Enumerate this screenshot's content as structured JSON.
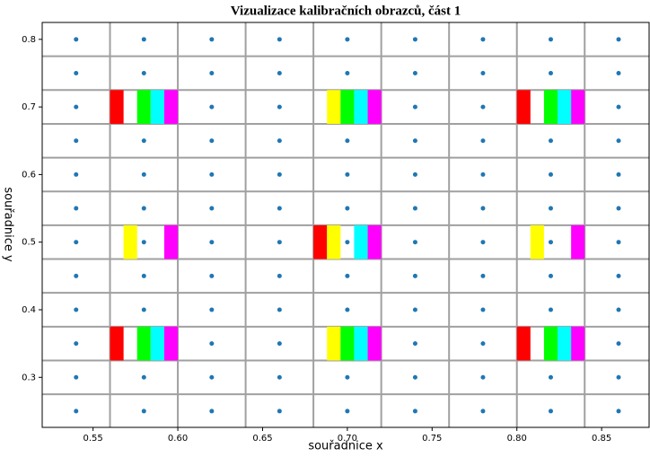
{
  "chart_data": {
    "type": "scatter",
    "title": "Vizualizace kalibračních obrazců, část 1",
    "xlabel": "souřadnice x",
    "ylabel": "souřadnice y",
    "xlim": [
      0.52,
      0.878
    ],
    "ylim": [
      0.226,
      0.825
    ],
    "xticks": [
      0.55,
      {
        "value": 0.6,
        "label": "0.60"
      },
      0.65,
      {
        "value": 0.7,
        "label": "0.70"
      },
      0.75,
      {
        "value": 0.8,
        "label": "0.80"
      },
      0.85
    ],
    "yticks": [
      0.3,
      0.4,
      0.5,
      0.6,
      0.7,
      0.8
    ],
    "xgrid": [
      0.56,
      0.6,
      0.64,
      0.68,
      0.72,
      0.76,
      0.8,
      0.84
    ],
    "ygrid": [
      0.275,
      0.325,
      0.375,
      0.425,
      0.475,
      0.525,
      0.575,
      0.625,
      0.675,
      0.725,
      0.775
    ],
    "grid_color": "#a0a0a0",
    "point_color": "#1f77b4",
    "x": [
      0.54,
      0.58,
      0.62,
      0.66,
      0.7,
      0.74,
      0.78,
      0.82,
      0.86,
      0.54,
      0.58,
      0.62,
      0.66,
      0.7,
      0.74,
      0.78,
      0.82,
      0.86,
      0.54,
      0.58,
      0.62,
      0.66,
      0.7,
      0.74,
      0.78,
      0.82,
      0.86,
      0.54,
      0.58,
      0.62,
      0.66,
      0.7,
      0.74,
      0.78,
      0.82,
      0.86,
      0.54,
      0.58,
      0.62,
      0.66,
      0.7,
      0.74,
      0.78,
      0.82,
      0.86,
      0.54,
      0.58,
      0.62,
      0.66,
      0.7,
      0.74,
      0.78,
      0.82,
      0.86,
      0.54,
      0.58,
      0.62,
      0.66,
      0.7,
      0.74,
      0.78,
      0.82,
      0.86,
      0.54,
      0.58,
      0.62,
      0.66,
      0.7,
      0.74,
      0.78,
      0.82,
      0.86,
      0.54,
      0.58,
      0.62,
      0.66,
      0.7,
      0.74,
      0.78,
      0.82,
      0.86,
      0.54,
      0.58,
      0.62,
      0.66,
      0.7,
      0.74,
      0.78,
      0.82,
      0.86,
      0.54,
      0.58,
      0.62,
      0.66,
      0.7,
      0.74,
      0.78,
      0.82,
      0.86,
      0.54,
      0.58,
      0.62,
      0.66,
      0.7,
      0.74,
      0.78,
      0.82,
      0.86
    ],
    "y": [
      0.8,
      0.8,
      0.8,
      0.8,
      0.8,
      0.8,
      0.8,
      0.8,
      0.8,
      0.75,
      0.75,
      0.75,
      0.75,
      0.75,
      0.75,
      0.75,
      0.75,
      0.75,
      0.7,
      0.7,
      0.7,
      0.7,
      0.7,
      0.7,
      0.7,
      0.7,
      0.7,
      0.65,
      0.65,
      0.65,
      0.65,
      0.65,
      0.65,
      0.65,
      0.65,
      0.65,
      0.6,
      0.6,
      0.6,
      0.6,
      0.6,
      0.6,
      0.6,
      0.6,
      0.6,
      0.55,
      0.55,
      0.55,
      0.55,
      0.55,
      0.55,
      0.55,
      0.55,
      0.55,
      0.5,
      0.5,
      0.5,
      0.5,
      0.5,
      0.5,
      0.5,
      0.5,
      0.5,
      0.45,
      0.45,
      0.45,
      0.45,
      0.45,
      0.45,
      0.45,
      0.45,
      0.45,
      0.4,
      0.4,
      0.4,
      0.4,
      0.4,
      0.4,
      0.4,
      0.4,
      0.4,
      0.35,
      0.35,
      0.35,
      0.35,
      0.35,
      0.35,
      0.35,
      0.35,
      0.35,
      0.3,
      0.3,
      0.3,
      0.3,
      0.3,
      0.3,
      0.3,
      0.3,
      0.3,
      0.25,
      0.25,
      0.25,
      0.25,
      0.25,
      0.25,
      0.25,
      0.25,
      0.25
    ],
    "rect_width": 0.008,
    "rect_height": 0.05,
    "rects": [
      {
        "color": "#ff0000",
        "x": [
          0.56,
          0.56,
          0.68,
          0.8,
          0.8
        ],
        "y": [
          0.7,
          0.35,
          0.5,
          0.7,
          0.35
        ]
      },
      {
        "color": "#ffff00",
        "x": [
          0.568,
          0.688,
          0.688,
          0.688,
          0.808
        ],
        "y": [
          0.5,
          0.7,
          0.5,
          0.35,
          0.5
        ]
      },
      {
        "color": "#00ff00",
        "x": [
          0.576,
          0.576,
          0.696,
          0.696,
          0.816,
          0.816
        ],
        "y": [
          0.7,
          0.35,
          0.7,
          0.35,
          0.7,
          0.35
        ]
      },
      {
        "color": "#00ffff",
        "x": [
          0.584,
          0.584,
          0.704,
          0.704,
          0.704,
          0.824,
          0.824
        ],
        "y": [
          0.7,
          0.35,
          0.7,
          0.5,
          0.35,
          0.7,
          0.35
        ]
      },
      {
        "color": "#ff00ff",
        "x": [
          0.592,
          0.592,
          0.592,
          0.712,
          0.712,
          0.712,
          0.832,
          0.832,
          0.832
        ],
        "y": [
          0.7,
          0.5,
          0.35,
          0.7,
          0.5,
          0.35,
          0.7,
          0.5,
          0.35
        ]
      }
    ]
  }
}
